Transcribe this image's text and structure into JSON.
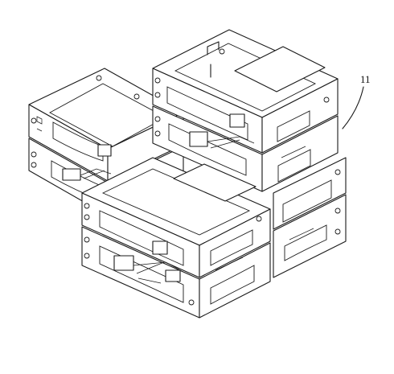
{
  "figure": {
    "reference_numeral": "11"
  },
  "colors": {
    "line": "#1a1a1a",
    "background": "#ffffff",
    "circuit_accents": [
      "#c0399a",
      "#3a4fd0",
      "#e0457a",
      "#2f8f6a"
    ]
  }
}
